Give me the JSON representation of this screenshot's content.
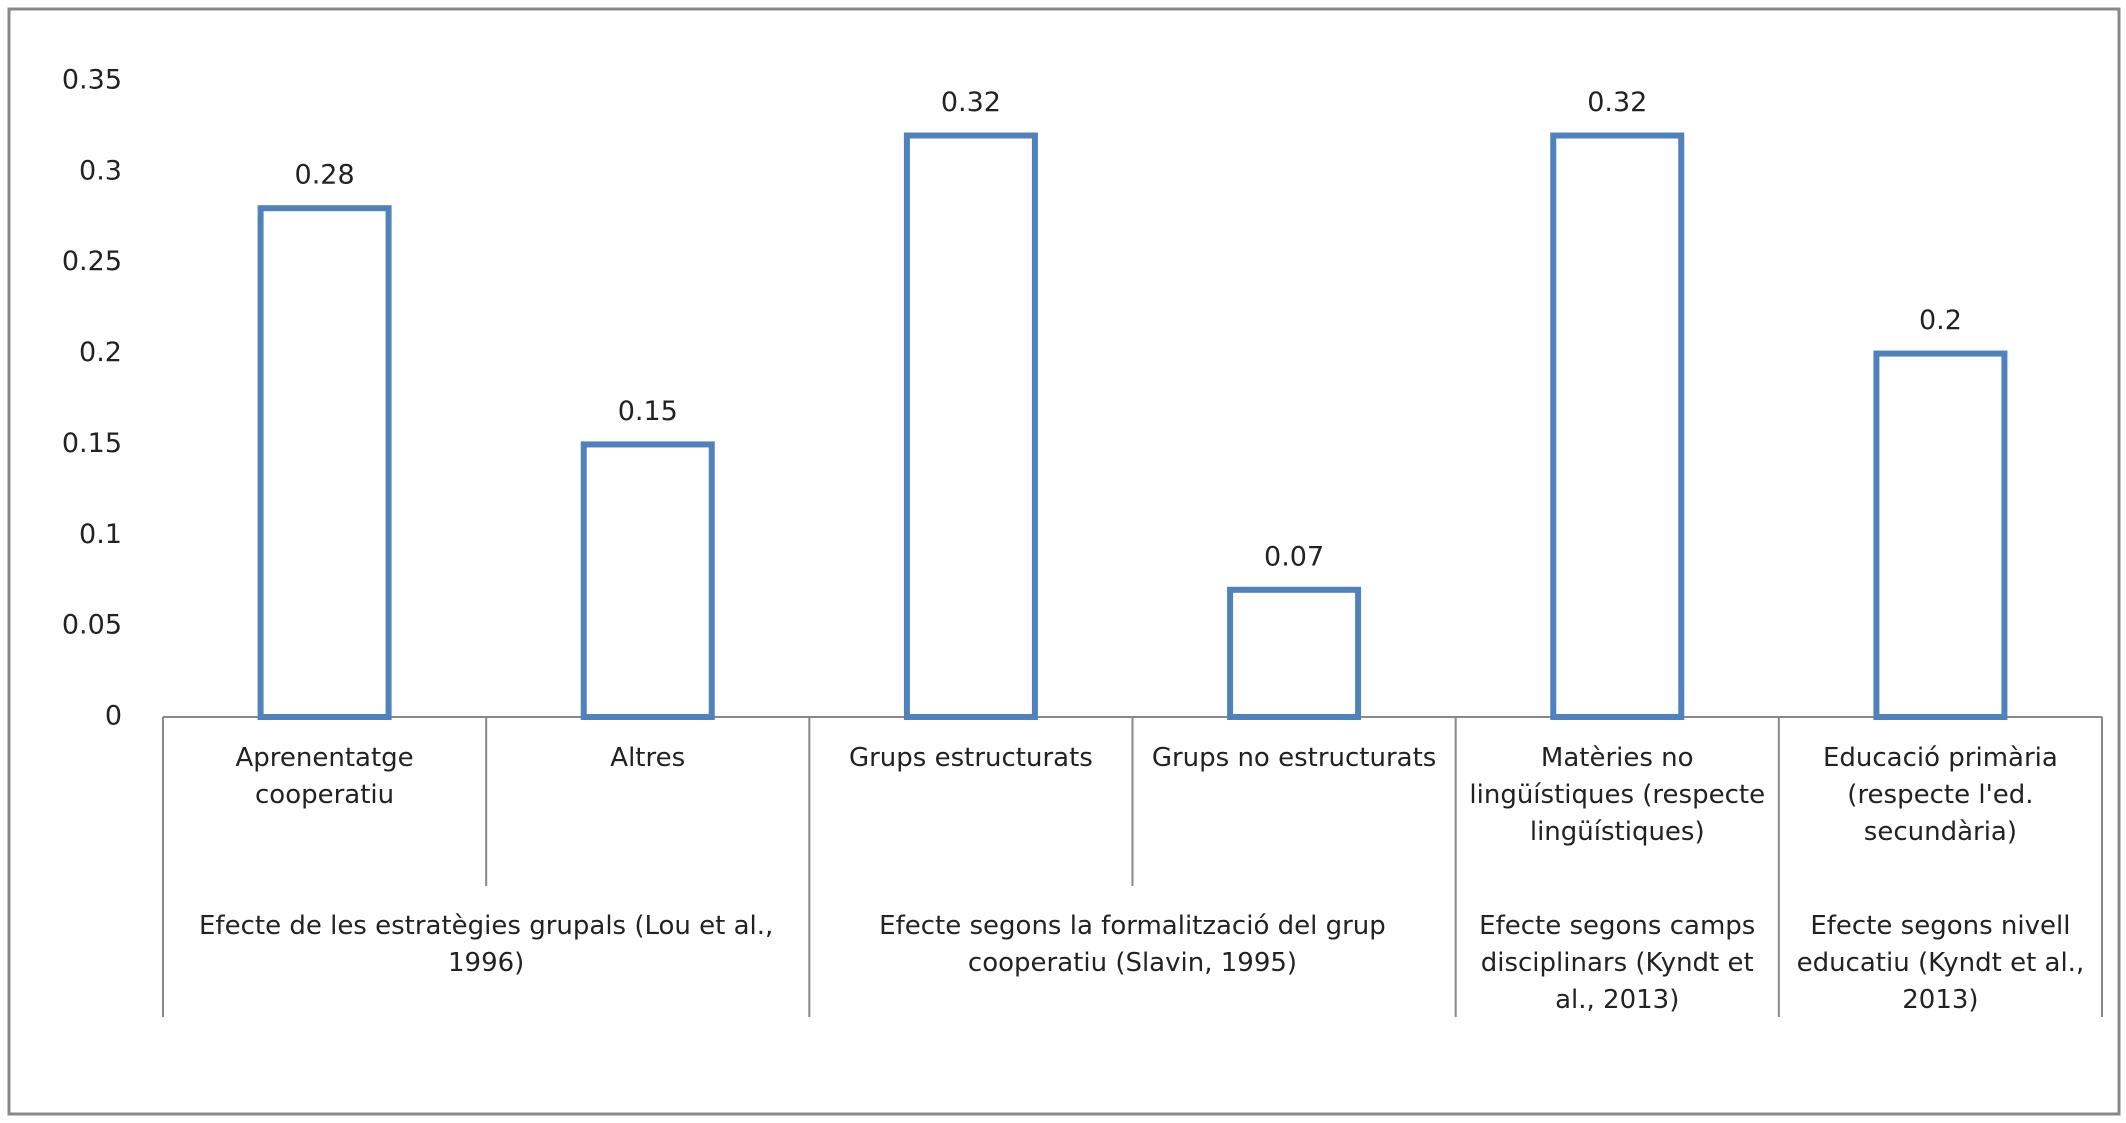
{
  "chart_data": {
    "type": "bar",
    "groups": [
      {
        "name": "Efecte de les estratègies grupals (Lou et al., 1996)",
        "categories": [
          "Aprenentatge cooperatiu",
          "Altres"
        ]
      },
      {
        "name": "Efecte segons la formalització del grup cooperatiu (Slavin, 1995)",
        "categories": [
          "Grups estructurats",
          "Grups no estructurats"
        ]
      },
      {
        "name": "Efecte segons camps disciplinars (Kyndt et al., 2013)",
        "categories": [
          "Matèries no lingüístiques (respecte lingüístiques)"
        ]
      },
      {
        "name": "Efecte segons nivell educatiu (Kyndt et al., 2013)",
        "categories": [
          "Educació primària (respecte l'ed. secundària)"
        ]
      }
    ],
    "values": [
      0.28,
      0.15,
      0.32,
      0.07,
      0.32,
      0.2
    ],
    "color": "#4f81bd",
    "ylim": [
      0,
      0.35
    ],
    "yticks": [
      0,
      0.05,
      0.1,
      0.15,
      0.2,
      0.25,
      0.3,
      0.35
    ],
    "grid": false
  }
}
